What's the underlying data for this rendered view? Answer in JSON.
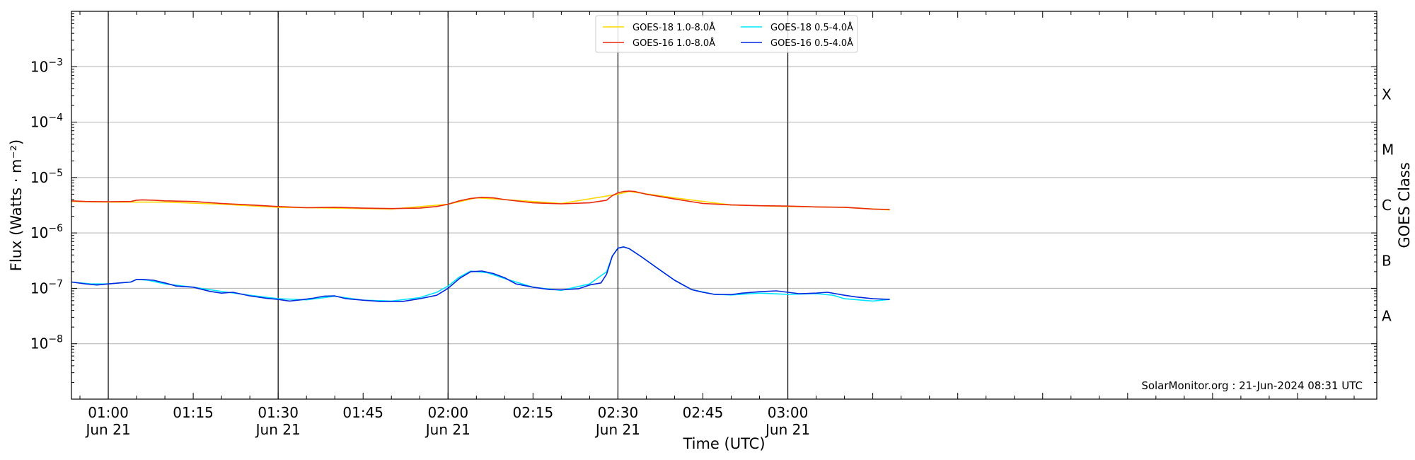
{
  "chart_data": {
    "type": "line",
    "xlabel": "Time (UTC)",
    "ylabel": "Flux (Watts · m⁻²)",
    "y2label": "GOES Class",
    "yscale": "log",
    "ylim": [
      1e-09,
      0.01
    ],
    "xlim_minutes": [
      -6.5,
      224.0
    ],
    "x_ticks": [
      {
        "m": 0,
        "line1": "01:00",
        "line2": "Jun 21"
      },
      {
        "m": 15,
        "line1": "01:15",
        "line2": ""
      },
      {
        "m": 30,
        "line1": "01:30",
        "line2": "Jun 21"
      },
      {
        "m": 45,
        "line1": "01:45",
        "line2": ""
      },
      {
        "m": 60,
        "line1": "02:00",
        "line2": "Jun 21"
      },
      {
        "m": 75,
        "line1": "02:15",
        "line2": ""
      },
      {
        "m": 90,
        "line1": "02:30",
        "line2": "Jun 21"
      },
      {
        "m": 105,
        "line1": "02:45",
        "line2": ""
      },
      {
        "m": 120,
        "line1": "03:00",
        "line2": "Jun 21"
      }
    ],
    "vlines_minutes": [
      0,
      30,
      60,
      90,
      120
    ],
    "y_ticks": [
      {
        "v": 1e-08,
        "base": "10",
        "exp": "−8"
      },
      {
        "v": 1e-07,
        "base": "10",
        "exp": "−7"
      },
      {
        "v": 1e-06,
        "base": "10",
        "exp": "−6"
      },
      {
        "v": 1e-05,
        "base": "10",
        "exp": "−5"
      },
      {
        "v": 0.0001,
        "base": "10",
        "exp": "−4"
      },
      {
        "v": 0.001,
        "base": "10",
        "exp": "−3"
      }
    ],
    "goes_classes": [
      {
        "label": "A",
        "v": 3.16e-08
      },
      {
        "label": "B",
        "v": 3.16e-07
      },
      {
        "label": "C",
        "v": 3.16e-06
      },
      {
        "label": "M",
        "v": 3.16e-05
      },
      {
        "label": "X",
        "v": 0.000316
      }
    ],
    "grid": true,
    "legend_position": "top-center",
    "credit": "SolarMonitor.org : 21-Jun-2024 08:31 UTC",
    "series": [
      {
        "name": "GOES-18 1.0-8.0Å",
        "color": "#ffd700",
        "x": [
          -6.5,
          0,
          10,
          20,
          30,
          40,
          50,
          60,
          65,
          70,
          80,
          90,
          92,
          100,
          110,
          120,
          130,
          138
        ],
        "y": [
          3.7e-06,
          3.6e-06,
          3.6e-06,
          3.3e-06,
          2.9e-06,
          2.8e-06,
          2.7e-06,
          3.3e-06,
          4.3e-06,
          4e-06,
          3.4e-06,
          5e-06,
          5.6e-06,
          4.3e-06,
          3.2e-06,
          3e-06,
          2.9e-06,
          2.6e-06
        ]
      },
      {
        "name": "GOES-16 1.0-8.0Å",
        "color": "#e8290b",
        "x": [
          -6.5,
          -4,
          0,
          4,
          5,
          6,
          8,
          10,
          15,
          20,
          25,
          30,
          35,
          40,
          45,
          50,
          55,
          58,
          60,
          62,
          64,
          66,
          68,
          70,
          75,
          80,
          85,
          88,
          89,
          90,
          91,
          92,
          93,
          95,
          100,
          105,
          110,
          115,
          120,
          125,
          130,
          135,
          138
        ],
        "y": [
          3.8e-06,
          3.7e-06,
          3.65e-06,
          3.7e-06,
          3.9e-06,
          3.95e-06,
          3.9e-06,
          3.8e-06,
          3.7e-06,
          3.4e-06,
          3.2e-06,
          3e-06,
          2.85e-06,
          2.9e-06,
          2.8e-06,
          2.75e-06,
          2.8e-06,
          3e-06,
          3.3e-06,
          3.8e-06,
          4.2e-06,
          4.4e-06,
          4.3e-06,
          4e-06,
          3.5e-06,
          3.35e-06,
          3.5e-06,
          3.9e-06,
          4.7e-06,
          5.3e-06,
          5.6e-06,
          5.7e-06,
          5.6e-06,
          5e-06,
          4.1e-06,
          3.4e-06,
          3.2e-06,
          3.1e-06,
          3.05e-06,
          2.95e-06,
          2.9e-06,
          2.7e-06,
          2.65e-06
        ]
      },
      {
        "name": "GOES-18 0.5-4.0Å",
        "color": "#00e5ff",
        "x": [
          -6.5,
          -3,
          0,
          4,
          5,
          7,
          10,
          15,
          20,
          25,
          30,
          35,
          40,
          45,
          48,
          50,
          55,
          58,
          60,
          62,
          64,
          67,
          70,
          75,
          80,
          85,
          88,
          89,
          90,
          91,
          92,
          94,
          97,
          100,
          103,
          107,
          110,
          115,
          120,
          125,
          128,
          130,
          135,
          138
        ],
        "y": [
          1.3e-07,
          1.2e-07,
          1.2e-07,
          1.3e-07,
          1.45e-07,
          1.4e-07,
          1.2e-07,
          1.05e-07,
          8.8e-08,
          7.5e-08,
          6.5e-08,
          6.2e-08,
          7.2e-08,
          6.1e-08,
          6e-08,
          5.9e-08,
          6.8e-08,
          8.5e-08,
          1.1e-07,
          1.6e-07,
          2.05e-07,
          1.9e-07,
          1.5e-07,
          1.05e-07,
          9.2e-08,
          1.2e-07,
          2e-07,
          3.8e-07,
          5.3e-07,
          5.6e-07,
          5.2e-07,
          3.8e-07,
          2.3e-07,
          1.4e-07,
          9.5e-08,
          7.8e-08,
          7.6e-08,
          8.2e-08,
          7.8e-08,
          8e-08,
          7.5e-08,
          6.5e-08,
          5.9e-08,
          6.3e-08
        ]
      },
      {
        "name": "GOES-16 0.5-4.0Å",
        "color": "#0026e0",
        "x": [
          -6.5,
          -4,
          -2,
          0,
          2,
          4,
          5,
          6,
          8,
          10,
          12,
          15,
          18,
          20,
          22,
          25,
          28,
          30,
          32,
          34,
          36,
          38,
          40,
          42,
          45,
          48,
          50,
          52,
          55,
          58,
          60,
          62,
          64,
          66,
          68,
          70,
          72,
          75,
          78,
          80,
          83,
          85,
          87,
          88,
          89,
          90,
          91,
          92,
          94,
          97,
          100,
          103,
          105,
          107,
          110,
          112,
          115,
          118,
          120,
          122,
          125,
          127,
          130,
          132,
          135,
          138
        ],
        "y": [
          1.3e-07,
          1.2e-07,
          1.15e-07,
          1.2e-07,
          1.25e-07,
          1.3e-07,
          1.45e-07,
          1.45e-07,
          1.4e-07,
          1.25e-07,
          1.1e-07,
          1.05e-07,
          8.8e-08,
          8.2e-08,
          8.5e-08,
          7.3e-08,
          6.6e-08,
          6.3e-08,
          5.9e-08,
          6.2e-08,
          6.6e-08,
          7.2e-08,
          7.3e-08,
          6.5e-08,
          6.1e-08,
          5.8e-08,
          5.8e-08,
          5.8e-08,
          6.5e-08,
          7.5e-08,
          1e-07,
          1.5e-07,
          2e-07,
          2.05e-07,
          1.85e-07,
          1.55e-07,
          1.2e-07,
          1.05e-07,
          9.5e-08,
          9.4e-08,
          9.8e-08,
          1.15e-07,
          1.25e-07,
          1.8e-07,
          3.8e-07,
          5.3e-07,
          5.6e-07,
          5.2e-07,
          3.8e-07,
          2.3e-07,
          1.4e-07,
          9.5e-08,
          8.5e-08,
          7.8e-08,
          7.7e-08,
          8.2e-08,
          8.7e-08,
          9e-08,
          8.5e-08,
          8e-08,
          8.2e-08,
          8.5e-08,
          7.5e-08,
          7e-08,
          6.5e-08,
          6.3e-08
        ]
      }
    ]
  }
}
